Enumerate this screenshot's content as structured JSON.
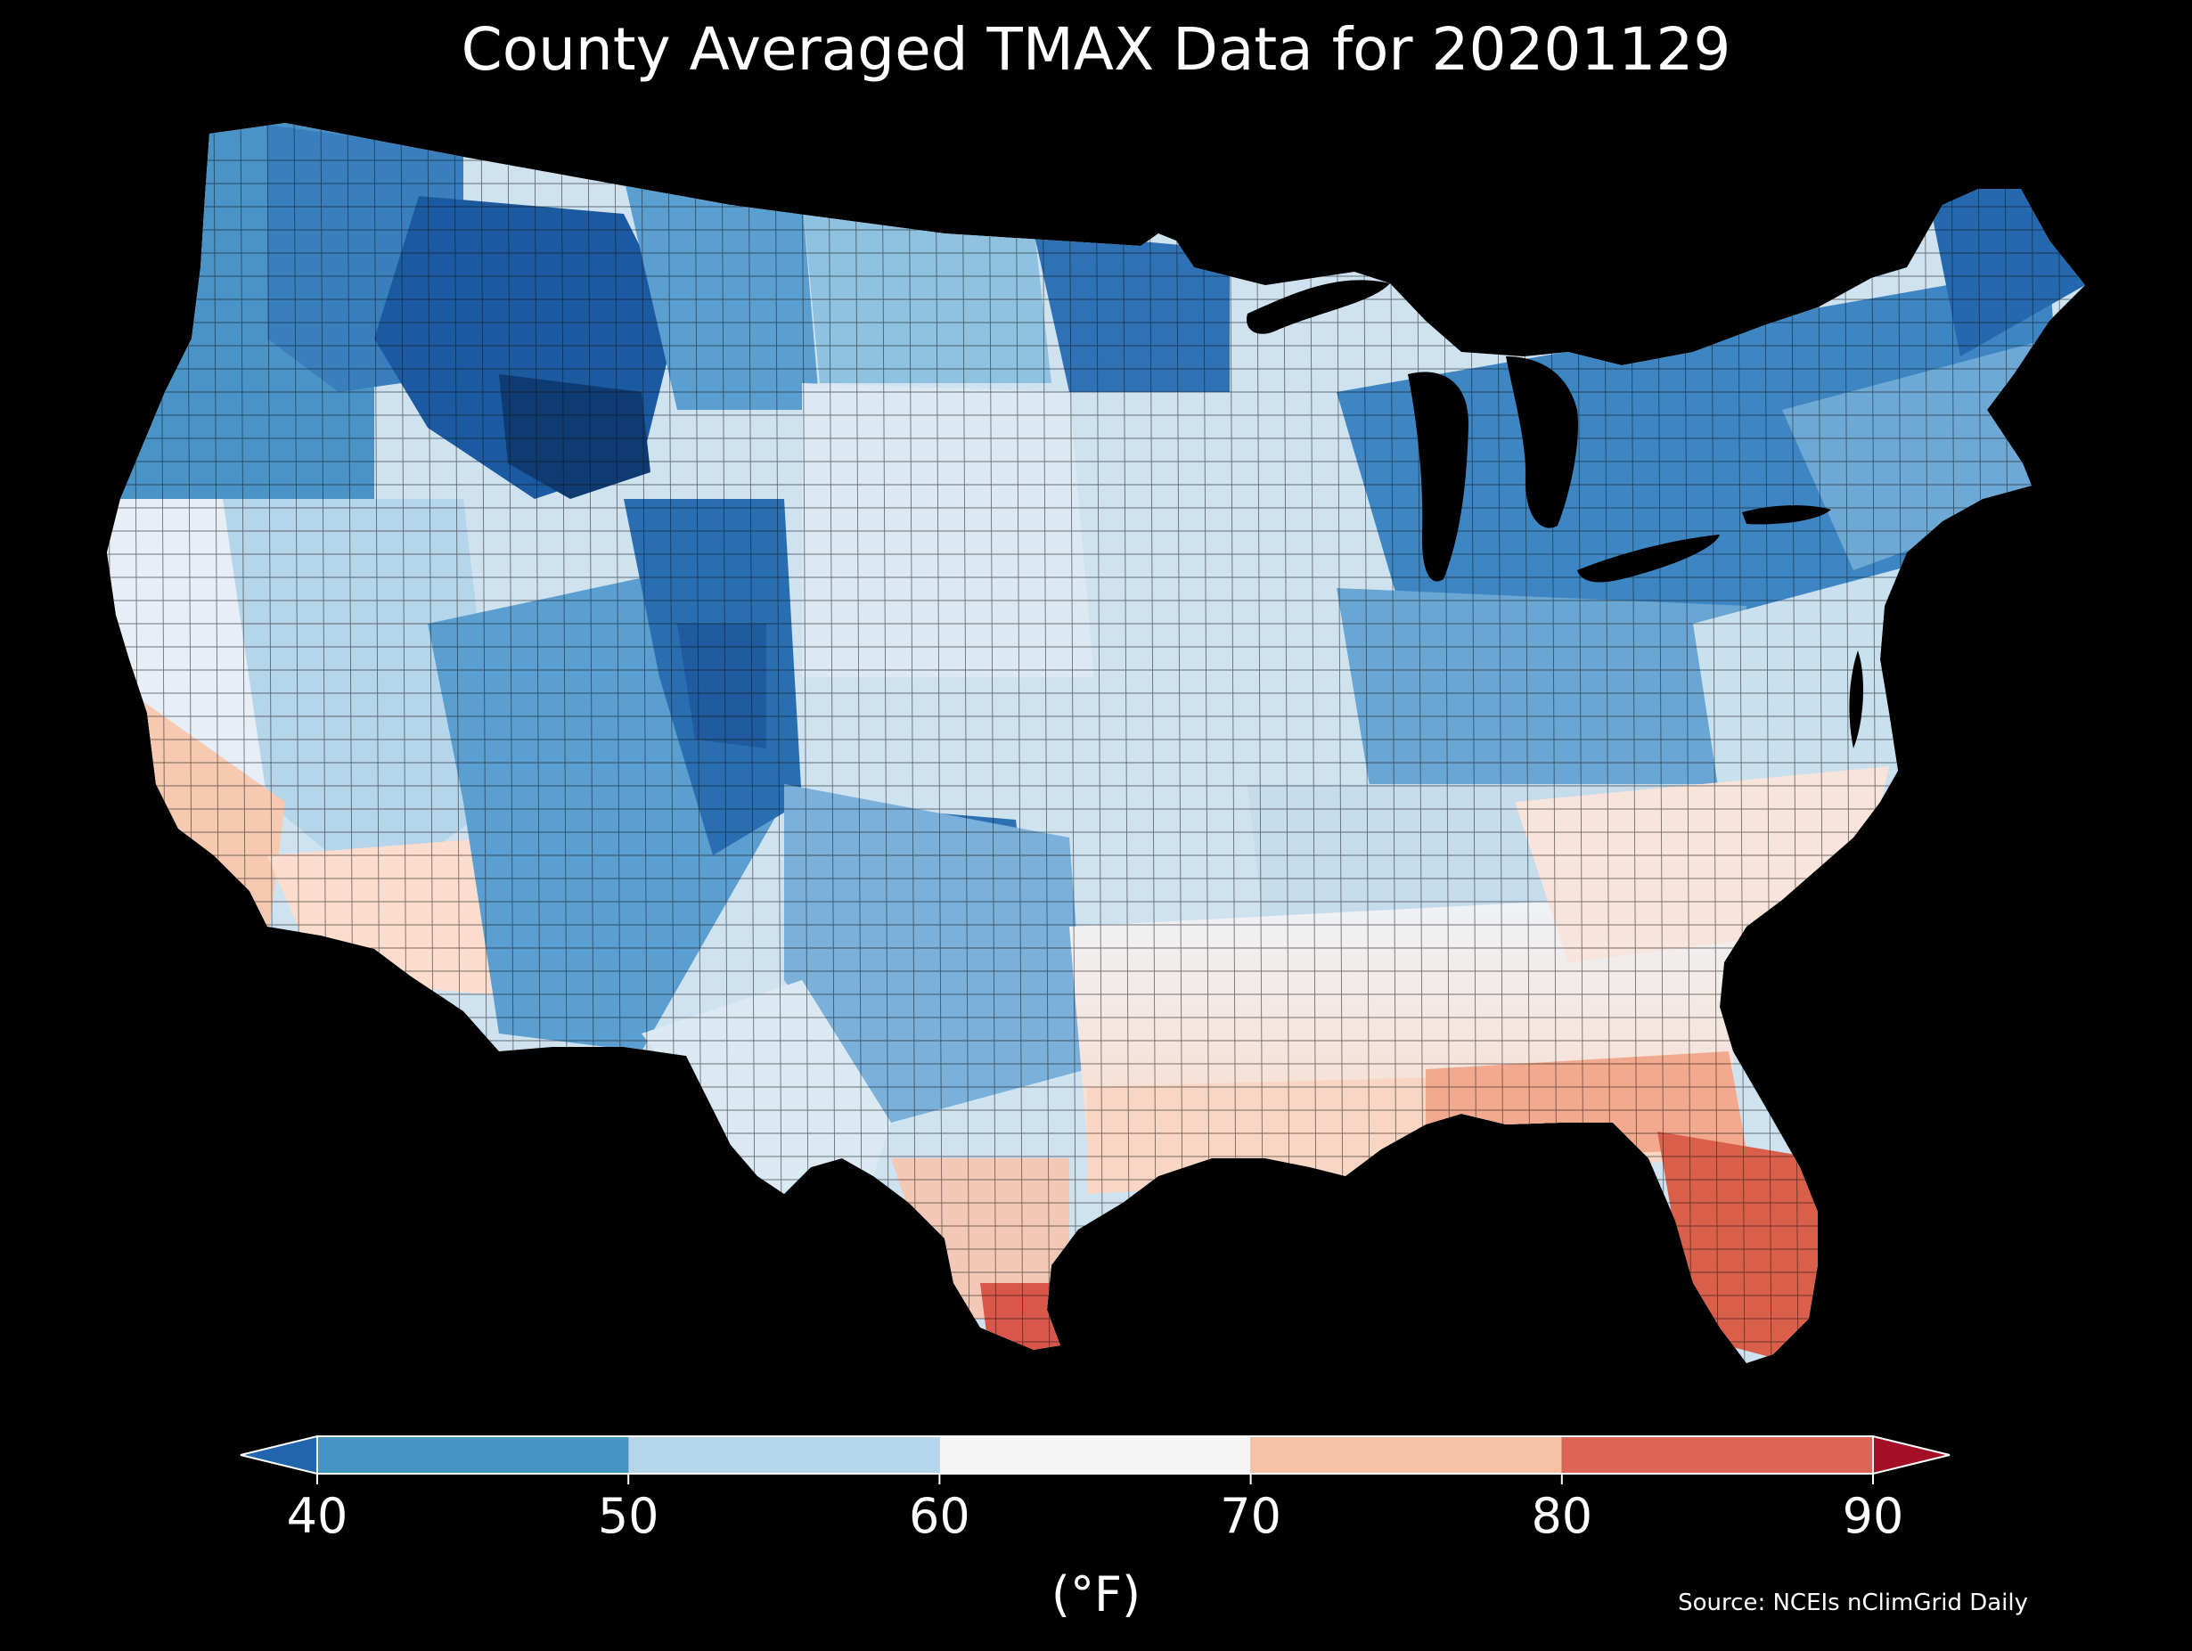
{
  "title": "County Averaged TMAX Data for 20201129",
  "map": {
    "region": "Contiguous United States",
    "background_color": "#000000",
    "border_color": "#000000",
    "regions": [
      {
        "name": "pacific-northwest-coast",
        "color": "#4a93c6"
      },
      {
        "name": "washington-inland",
        "color": "#3a7fbd"
      },
      {
        "name": "idaho-montana-mountains",
        "color": "#1b5aa0"
      },
      {
        "name": "wyoming-core",
        "color": "#0f3b73"
      },
      {
        "name": "eastern-montana",
        "color": "#5a9fd0"
      },
      {
        "name": "north-dakota",
        "color": "#8fc2e0"
      },
      {
        "name": "minnesota-north",
        "color": "#2e72b5"
      },
      {
        "name": "great-lakes-northeast",
        "color": "#3d86c3"
      },
      {
        "name": "maine",
        "color": "#2568ad"
      },
      {
        "name": "new-england-south",
        "color": "#6ea9d6"
      },
      {
        "name": "mid-atlantic",
        "color": "#c9e0ef"
      },
      {
        "name": "california-coast",
        "color": "#e7eef5"
      },
      {
        "name": "southern-california",
        "color": "#f6c9b0"
      },
      {
        "name": "arizona-south",
        "color": "#fbdccd"
      },
      {
        "name": "nevada-utah",
        "color": "#b5d5ea"
      },
      {
        "name": "colorado-rockies",
        "color": "#2a6eb2"
      },
      {
        "name": "colorado-plateau",
        "color": "#5b9ed0"
      },
      {
        "name": "oklahoma-panhandle",
        "color": "#2c6fb2"
      },
      {
        "name": "south-dakota-nebraska",
        "color": "#dce9f3"
      },
      {
        "name": "iowa-missouri",
        "color": "#cfe2f0"
      },
      {
        "name": "ohio-valley",
        "color": "#6aa6d4"
      },
      {
        "name": "tennessee-kentucky",
        "color": "#c5dced"
      },
      {
        "name": "deep-south-north",
        "color": "#eff3f7"
      },
      {
        "name": "gulf-coast",
        "color": "#f9d6c4"
      },
      {
        "name": "florida-north",
        "color": "#f2a98d"
      },
      {
        "name": "florida-south",
        "color": "#d95f4a"
      },
      {
        "name": "south-texas-tip",
        "color": "#d9574a"
      },
      {
        "name": "carolinas-georgia",
        "color": "#f8e4da"
      },
      {
        "name": "west-texas",
        "color": "#dbe9f3"
      },
      {
        "name": "central-texas",
        "color": "#7ab0d9"
      }
    ],
    "lakes": [
      {
        "name": "Lake Superior",
        "color": "#000000"
      },
      {
        "name": "Lake Michigan",
        "color": "#000000"
      },
      {
        "name": "Lake Huron",
        "color": "#000000"
      },
      {
        "name": "Lake Erie",
        "color": "#000000"
      },
      {
        "name": "Lake Ontario",
        "color": "#000000"
      }
    ]
  },
  "colorbar": {
    "unit_label": "(°F)",
    "ticks": [
      "40",
      "50",
      "60",
      "70",
      "80",
      "90"
    ],
    "bins": [
      {
        "from": null,
        "to": 40,
        "color": "#2166ac"
      },
      {
        "from": 40,
        "to": 50,
        "color": "#4393c3"
      },
      {
        "from": 50,
        "to": 60,
        "color": "#b5d5ea"
      },
      {
        "from": 60,
        "to": 70,
        "color": "#f5f5f5"
      },
      {
        "from": 70,
        "to": 80,
        "color": "#f7c1a6"
      },
      {
        "from": 80,
        "to": 90,
        "color": "#dd6555"
      },
      {
        "from": 90,
        "to": null,
        "color": "#a50f26"
      }
    ]
  },
  "source": "Source: NCEIs nClimGrid Daily"
}
